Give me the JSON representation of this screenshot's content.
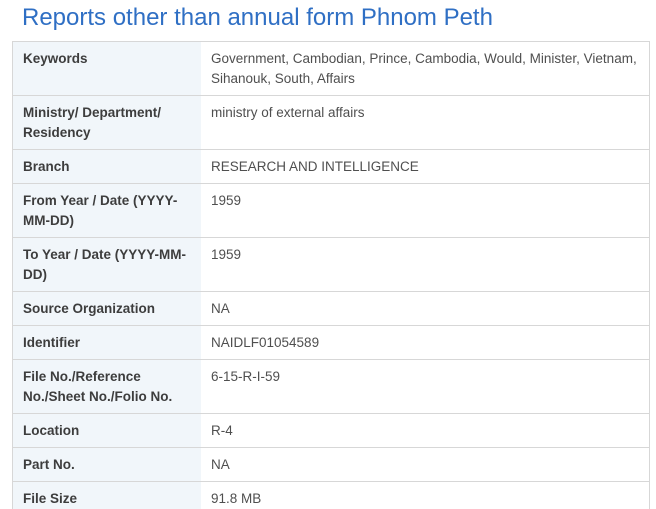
{
  "page": {
    "title": "Reports other than annual form Phnom Peth"
  },
  "colors": {
    "title_blue": "#2f6fc4",
    "label_bg": "#f1f6fa",
    "border": "#d7d7d7",
    "label_text": "#3d3d3d",
    "value_text": "#4f4f4f"
  },
  "table": {
    "rows": [
      {
        "label": "Keywords",
        "value": "Government, Cambodian, Prince, Cambodia, Would, Minister, Vietnam, Sihanouk, South, Affairs"
      },
      {
        "label": "Ministry/ Department/ Residency",
        "value": "ministry of external affairs"
      },
      {
        "label": "Branch",
        "value": "RESEARCH AND INTELLIGENCE"
      },
      {
        "label": "From Year / Date (YYYY-MM-DD)",
        "value": "1959"
      },
      {
        "label": "To Year / Date (YYYY-MM-DD)",
        "value": "1959"
      },
      {
        "label": "Source Organization",
        "value": "NA"
      },
      {
        "label": "Identifier",
        "value": "NAIDLF01054589"
      },
      {
        "label": "File No./Reference No./Sheet No./Folio No.",
        "value": "6-15-R-I-59"
      },
      {
        "label": "Location",
        "value": "R-4"
      },
      {
        "label": "Part No.",
        "value": "NA"
      },
      {
        "label": "File Size",
        "value": "91.8 MB"
      }
    ]
  }
}
